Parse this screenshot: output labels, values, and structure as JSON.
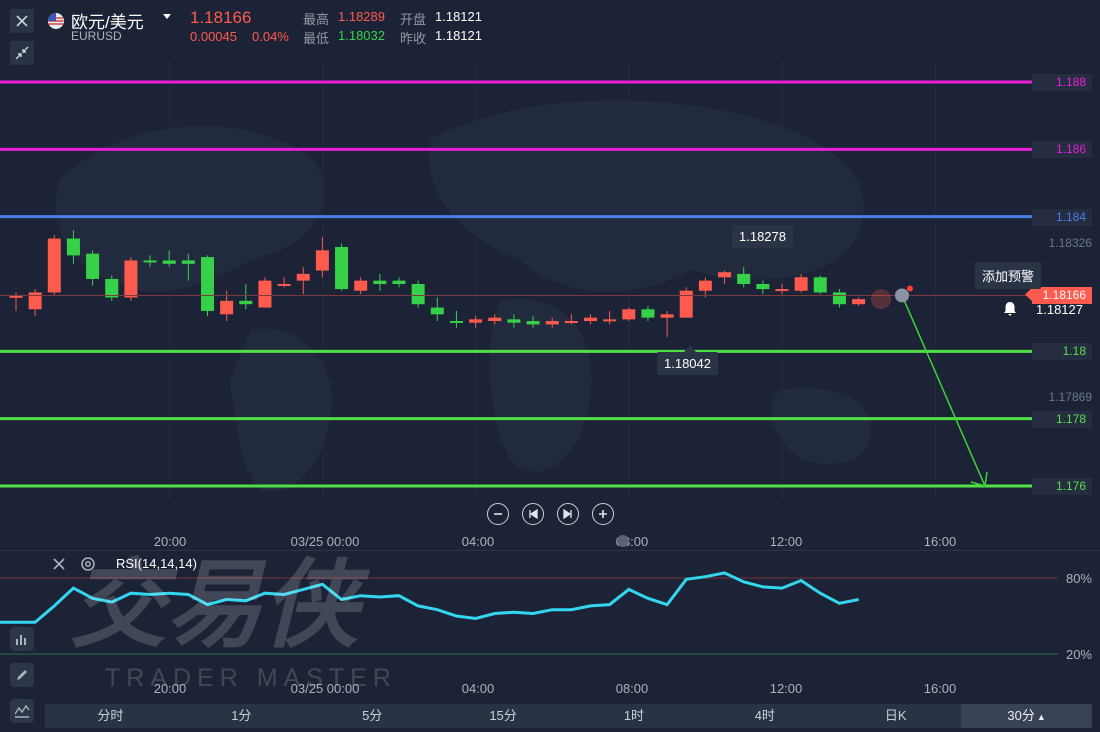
{
  "header": {
    "pair_name": "欧元/美元",
    "pair_code": "EURUSD",
    "price": "1.18166",
    "change": "0.00045",
    "change_pct": "0.04%",
    "high_label": "最高",
    "high": "1.18289",
    "low_label": "最低",
    "low": "1.18032",
    "open_label": "开盘",
    "open": "1.18121",
    "prev_close_label": "昨收",
    "prev_close": "1.18121"
  },
  "levels": [
    {
      "price": "1.188",
      "color": "#e81ed9"
    },
    {
      "price": "1.186",
      "color": "#e81ed9"
    },
    {
      "price": "1.184",
      "color": "#4a7fe8"
    },
    {
      "price": "1.18",
      "color": "#52e046"
    },
    {
      "price": "1.178",
      "color": "#52e046"
    },
    {
      "price": "1.176",
      "color": "#52e046"
    }
  ],
  "axis_labels": {
    "top_partial": "1.18788",
    "mid_upper": "1.18326",
    "mid_lower": "1.17869"
  },
  "current_price_tag": "1.18166",
  "alert_price": "1.18127",
  "alert_label": "添加预警",
  "tooltips": {
    "high": "1.18278",
    "low": "1.18042"
  },
  "time_labels": [
    "20:00",
    "03/25 00:00",
    "04:00",
    "08:00",
    "12:00",
    "16:00"
  ],
  "rsi": {
    "label": "RSI(14,14,14)",
    "upper": "80%",
    "lower": "20%"
  },
  "watermark": {
    "text": "TRADER MASTER"
  },
  "tabs": [
    "分时",
    "1分",
    "5分",
    "15分",
    "1时",
    "4时",
    "日K",
    "30分"
  ],
  "colors": {
    "up": "#ff5a4e",
    "down": "#36d148",
    "rsi_line": "#33d6ee",
    "background": "#1c2336"
  },
  "chart_data": {
    "type": "candlestick",
    "interval": "30分",
    "candles": [
      {
        "o": 1.1816,
        "h": 1.18175,
        "l": 1.1812,
        "c": 1.18165
      },
      {
        "o": 1.18125,
        "h": 1.18185,
        "l": 1.18105,
        "c": 1.18175
      },
      {
        "o": 1.18175,
        "h": 1.18345,
        "l": 1.18165,
        "c": 1.18335
      },
      {
        "o": 1.18335,
        "h": 1.1836,
        "l": 1.1826,
        "c": 1.18285
      },
      {
        "o": 1.1829,
        "h": 1.183,
        "l": 1.18195,
        "c": 1.18215
      },
      {
        "o": 1.18215,
        "h": 1.18225,
        "l": 1.1815,
        "c": 1.1816
      },
      {
        "o": 1.1816,
        "h": 1.1828,
        "l": 1.1815,
        "c": 1.1827
      },
      {
        "o": 1.1827,
        "h": 1.18285,
        "l": 1.1825,
        "c": 1.18265
      },
      {
        "o": 1.1827,
        "h": 1.183,
        "l": 1.1825,
        "c": 1.1826
      },
      {
        "o": 1.1827,
        "h": 1.1829,
        "l": 1.1821,
        "c": 1.1826
      },
      {
        "o": 1.1828,
        "h": 1.18285,
        "l": 1.18105,
        "c": 1.1812
      },
      {
        "o": 1.1811,
        "h": 1.1818,
        "l": 1.1809,
        "c": 1.1815
      },
      {
        "o": 1.1815,
        "h": 1.182,
        "l": 1.18125,
        "c": 1.1814
      },
      {
        "o": 1.1813,
        "h": 1.1822,
        "l": 1.1813,
        "c": 1.1821
      },
      {
        "o": 1.182,
        "h": 1.1822,
        "l": 1.1819,
        "c": 1.182
      },
      {
        "o": 1.1821,
        "h": 1.1825,
        "l": 1.1817,
        "c": 1.1823
      },
      {
        "o": 1.1824,
        "h": 1.1834,
        "l": 1.1822,
        "c": 1.183
      },
      {
        "o": 1.1831,
        "h": 1.1832,
        "l": 1.1818,
        "c": 1.18185
      },
      {
        "o": 1.1818,
        "h": 1.1822,
        "l": 1.1817,
        "c": 1.1821
      },
      {
        "o": 1.1821,
        "h": 1.1823,
        "l": 1.1818,
        "c": 1.182
      },
      {
        "o": 1.1821,
        "h": 1.1822,
        "l": 1.1819,
        "c": 1.182
      },
      {
        "o": 1.182,
        "h": 1.1821,
        "l": 1.1813,
        "c": 1.1814
      },
      {
        "o": 1.1813,
        "h": 1.1816,
        "l": 1.1809,
        "c": 1.1811
      },
      {
        "o": 1.1809,
        "h": 1.1812,
        "l": 1.1807,
        "c": 1.18085
      },
      {
        "o": 1.18085,
        "h": 1.18105,
        "l": 1.1807,
        "c": 1.18095
      },
      {
        "o": 1.1809,
        "h": 1.1811,
        "l": 1.1808,
        "c": 1.181
      },
      {
        "o": 1.18095,
        "h": 1.1811,
        "l": 1.1807,
        "c": 1.18085
      },
      {
        "o": 1.1809,
        "h": 1.18105,
        "l": 1.1807,
        "c": 1.1808
      },
      {
        "o": 1.1808,
        "h": 1.181,
        "l": 1.1807,
        "c": 1.1809
      },
      {
        "o": 1.1809,
        "h": 1.1811,
        "l": 1.1808,
        "c": 1.1809
      },
      {
        "o": 1.1809,
        "h": 1.1811,
        "l": 1.1808,
        "c": 1.181
      },
      {
        "o": 1.1809,
        "h": 1.1812,
        "l": 1.1808,
        "c": 1.18095
      },
      {
        "o": 1.18095,
        "h": 1.1813,
        "l": 1.1809,
        "c": 1.18125
      },
      {
        "o": 1.18125,
        "h": 1.18135,
        "l": 1.1809,
        "c": 1.181
      },
      {
        "o": 1.181,
        "h": 1.1812,
        "l": 1.18042,
        "c": 1.1811
      },
      {
        "o": 1.181,
        "h": 1.1819,
        "l": 1.181,
        "c": 1.1818
      },
      {
        "o": 1.1818,
        "h": 1.1822,
        "l": 1.1816,
        "c": 1.1821
      },
      {
        "o": 1.1822,
        "h": 1.1824,
        "l": 1.182,
        "c": 1.18235
      },
      {
        "o": 1.1823,
        "h": 1.1825,
        "l": 1.1819,
        "c": 1.182
      },
      {
        "o": 1.182,
        "h": 1.1821,
        "l": 1.1817,
        "c": 1.18185
      },
      {
        "o": 1.1818,
        "h": 1.182,
        "l": 1.1817,
        "c": 1.18185
      },
      {
        "o": 1.1818,
        "h": 1.1823,
        "l": 1.18175,
        "c": 1.1822
      },
      {
        "o": 1.1822,
        "h": 1.18225,
        "l": 1.1817,
        "c": 1.18175
      },
      {
        "o": 1.18175,
        "h": 1.18185,
        "l": 1.1813,
        "c": 1.1814
      },
      {
        "o": 1.1814,
        "h": 1.1816,
        "l": 1.18135,
        "c": 1.18155
      }
    ],
    "rsi_values": [
      45,
      45,
      58,
      72,
      64,
      61,
      68,
      67,
      68,
      67,
      59,
      63,
      62,
      68,
      67,
      71,
      75,
      63,
      66,
      65,
      66,
      58,
      55,
      50,
      48,
      52,
      53,
      52,
      55,
      55,
      58,
      59,
      71,
      64,
      59,
      79,
      81,
      84,
      77,
      73,
      72,
      78,
      68,
      60,
      63
    ],
    "rsi_range": [
      0,
      100
    ],
    "price_range": [
      1.175,
      1.189
    ],
    "price_axis_ticks": [
      "1.18788",
      "1.18326",
      "1.17869"
    ]
  }
}
